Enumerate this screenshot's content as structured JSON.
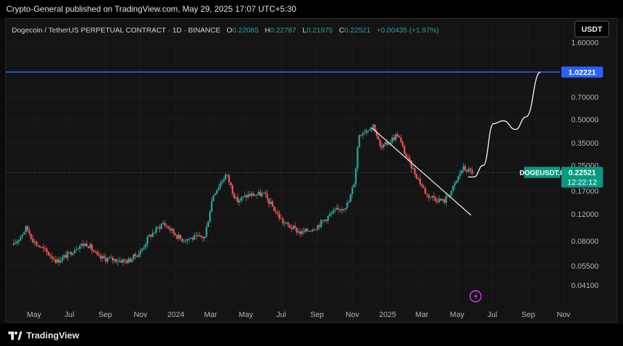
{
  "publish_line": "Crypto-General published on TradingView.com, May 29, 2025 17:07 UTC+5:30",
  "legend": {
    "symbol_text": "Dogecoin / TetherUS PERPETUAL CONTRACT · 1D · BINANCE",
    "o_label": "O",
    "o_value": "0.22085",
    "h_label": "H",
    "h_value": "0.22787",
    "l_label": "L",
    "l_value": "0.21975",
    "c_label": "C",
    "c_value": "0.22521",
    "change": "+0.00435 (+1.97%)"
  },
  "currency_button": "USDT",
  "brand": "TradingView",
  "colors": {
    "background": "#141414",
    "up": "#26a69a",
    "down": "#ef5350",
    "horizontal_line": "#2962ff",
    "last_price": "#089981",
    "drawing": "#ffffff",
    "text": "#b2b5be"
  },
  "chart_data": {
    "type": "candlestick",
    "symbol": "DOGEUSDT.P",
    "timeframe": "1D",
    "y_scale": "log",
    "y_ticks": [
      "1.60000",
      "0.70000",
      "0.50000",
      "0.35000",
      "0.25000",
      "0.17000",
      "0.12000",
      "0.08000",
      "0.05500",
      "0.04100"
    ],
    "x_ticks": [
      "May",
      "Jul",
      "Sep",
      "Nov",
      "2024",
      "Mar",
      "May",
      "Jul",
      "Sep",
      "Nov",
      "2025",
      "Mar",
      "May",
      "Jul",
      "Sep",
      "Nov"
    ],
    "x_tick_dates": [
      "2023-05-01",
      "2023-07-01",
      "2023-09-01",
      "2023-11-01",
      "2024-01-01",
      "2024-03-01",
      "2024-05-01",
      "2024-07-01",
      "2024-09-01",
      "2024-11-01",
      "2025-01-01",
      "2025-03-01",
      "2025-05-01",
      "2025-07-01",
      "2025-09-01",
      "2025-11-01"
    ],
    "horizontal_line": {
      "value": 1.02221,
      "label": "1.02221"
    },
    "last_price": {
      "symbol": "DOGEUSDT.P",
      "value": "0.22521",
      "countdown": "12:22:12"
    },
    "price_path": [
      {
        "date": "2023-03-27",
        "price": 0.075
      },
      {
        "date": "2023-04-18",
        "price": 0.098
      },
      {
        "date": "2023-05-01",
        "price": 0.079
      },
      {
        "date": "2023-06-10",
        "price": 0.059
      },
      {
        "date": "2023-07-01",
        "price": 0.066
      },
      {
        "date": "2023-07-15",
        "price": 0.074
      },
      {
        "date": "2023-08-01",
        "price": 0.077
      },
      {
        "date": "2023-08-20",
        "price": 0.062
      },
      {
        "date": "2023-10-10",
        "price": 0.059
      },
      {
        "date": "2023-11-01",
        "price": 0.068
      },
      {
        "date": "2023-11-15",
        "price": 0.085
      },
      {
        "date": "2023-12-10",
        "price": 0.105
      },
      {
        "date": "2024-01-10",
        "price": 0.082
      },
      {
        "date": "2024-02-20",
        "price": 0.085
      },
      {
        "date": "2024-03-05",
        "price": 0.16
      },
      {
        "date": "2024-03-28",
        "price": 0.22
      },
      {
        "date": "2024-04-15",
        "price": 0.145
      },
      {
        "date": "2024-05-05",
        "price": 0.16
      },
      {
        "date": "2024-06-01",
        "price": 0.162
      },
      {
        "date": "2024-07-05",
        "price": 0.105
      },
      {
        "date": "2024-08-05",
        "price": 0.09
      },
      {
        "date": "2024-09-01",
        "price": 0.1
      },
      {
        "date": "2024-09-25",
        "price": 0.12
      },
      {
        "date": "2024-10-25",
        "price": 0.14
      },
      {
        "date": "2024-11-05",
        "price": 0.2
      },
      {
        "date": "2024-11-12",
        "price": 0.4
      },
      {
        "date": "2024-12-08",
        "price": 0.46
      },
      {
        "date": "2024-12-20",
        "price": 0.32
      },
      {
        "date": "2025-01-18",
        "price": 0.4
      },
      {
        "date": "2025-02-03",
        "price": 0.28
      },
      {
        "date": "2025-03-10",
        "price": 0.16
      },
      {
        "date": "2025-04-08",
        "price": 0.145
      },
      {
        "date": "2025-04-25",
        "price": 0.18
      },
      {
        "date": "2025-05-10",
        "price": 0.24
      },
      {
        "date": "2025-05-29",
        "price": 0.22521
      }
    ],
    "trendline": [
      {
        "date": "2024-12-05",
        "price": 0.44
      },
      {
        "date": "2025-05-25",
        "price": 0.118
      }
    ],
    "projection_path": [
      {
        "date": "2025-05-20",
        "price": 0.21
      },
      {
        "date": "2025-05-30",
        "price": 0.21
      },
      {
        "date": "2025-06-15",
        "price": 0.25
      },
      {
        "date": "2025-07-03",
        "price": 0.47
      },
      {
        "date": "2025-07-20",
        "price": 0.49
      },
      {
        "date": "2025-08-10",
        "price": 0.43
      },
      {
        "date": "2025-08-28",
        "price": 0.52
      },
      {
        "date": "2025-09-22",
        "price": 1.02
      }
    ]
  }
}
